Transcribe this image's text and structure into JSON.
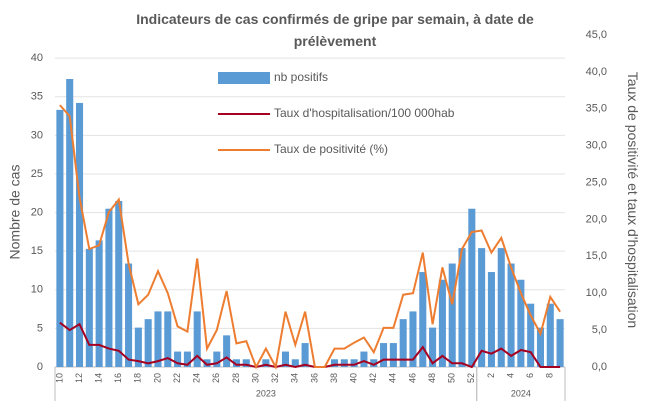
{
  "chart_data": {
    "type": "bar_line_combo",
    "title": "Indicateurs de cas confirmés de gripe par semain, à date de prélèvement",
    "y_label": "Nombre de cas",
    "y2_label": "Taux de positivité et taux d'hospitalisation",
    "categories": [
      "10",
      null,
      "12",
      null,
      "14",
      null,
      "16",
      null,
      "18",
      null,
      "20",
      null,
      "22",
      null,
      "24",
      null,
      "26",
      null,
      "28",
      null,
      "30",
      null,
      "32",
      null,
      "34",
      null,
      "36",
      null,
      "38",
      null,
      "40",
      null,
      "42",
      null,
      "44",
      null,
      "46",
      null,
      "48",
      null,
      "50",
      null,
      "52",
      null,
      "2",
      null,
      "4",
      null,
      "6",
      null,
      "8",
      null
    ],
    "x_groups": [
      "2023",
      "2024"
    ],
    "series": [
      {
        "name": "nb positifs",
        "kind": "bar",
        "color": "#5b9bd5",
        "values": [
          33.3,
          37.3,
          34.2,
          15.3,
          16.4,
          20.5,
          21.5,
          13.4,
          5.1,
          6.2,
          7.2,
          7.2,
          2,
          2,
          7.2,
          1,
          2,
          4.1,
          1,
          1,
          0,
          1,
          0,
          2,
          1,
          3.1,
          0,
          0,
          1,
          1,
          1,
          2,
          1,
          3.1,
          3.1,
          6.2,
          7.2,
          12.3,
          5.1,
          11.3,
          13.4,
          15.4,
          20.5,
          15.4,
          12.3,
          15.4,
          13.4,
          11.3,
          8.2,
          5.1,
          8.2,
          6.2
        ]
      },
      {
        "name": "Taux d'hospitalisation/100 000hab",
        "kind": "line",
        "axis": "y2",
        "color": "#a50021",
        "values": [
          6,
          5,
          5.8,
          3,
          3,
          2.5,
          2.2,
          1,
          0.8,
          0.5,
          0.8,
          1.2,
          0.5,
          0.3,
          1.5,
          0.3,
          0.5,
          1.3,
          0.3,
          0.3,
          0,
          0.3,
          0,
          0.3,
          0,
          0.3,
          0,
          0,
          0.3,
          0.3,
          0.3,
          0.8,
          0.3,
          1,
          1,
          1,
          1,
          2.7,
          0.5,
          1.5,
          0.5,
          0.5,
          0,
          2.2,
          1.8,
          2.5,
          1.5,
          2.3,
          2,
          0,
          0,
          0
        ]
      },
      {
        "name": "Taux de positivité (%)",
        "kind": "line",
        "axis": "y2",
        "color": "#ed7d31",
        "values": [
          35.5,
          34,
          23,
          16,
          16.5,
          21,
          22.7,
          14,
          8.5,
          9.8,
          13,
          10,
          5.5,
          4.8,
          14.7,
          2.5,
          5,
          10.3,
          3.2,
          3.5,
          0,
          2.5,
          0,
          7.5,
          3,
          7.5,
          0,
          0,
          2.5,
          2.5,
          3.3,
          4,
          2,
          5.3,
          5.3,
          9.8,
          10,
          15.5,
          5.8,
          13.5,
          8.5,
          16,
          18.3,
          18.5,
          15.5,
          17.5,
          13.5,
          10,
          7,
          4.5,
          9.5,
          7.5
        ]
      }
    ],
    "ylim": [
      0,
      43
    ],
    "yticks": [
      0,
      5,
      10,
      15,
      20,
      25,
      30,
      35,
      40
    ],
    "y2lim": [
      0,
      45
    ],
    "y2ticks": [
      {
        "value": 0,
        "label": "0,0"
      },
      {
        "value": 5,
        "label": "5,0"
      },
      {
        "value": 10,
        "label": "10,0"
      },
      {
        "value": 15,
        "label": "15,0"
      },
      {
        "value": 20,
        "label": "20,0"
      },
      {
        "value": 25,
        "label": "25,0"
      },
      {
        "value": 30,
        "label": "30,0"
      },
      {
        "value": 35,
        "label": "35,0"
      },
      {
        "value": 40,
        "label": "40,0"
      },
      {
        "value": 45,
        "label": "45,0"
      }
    ],
    "grid": true,
    "legend": "top-center"
  }
}
